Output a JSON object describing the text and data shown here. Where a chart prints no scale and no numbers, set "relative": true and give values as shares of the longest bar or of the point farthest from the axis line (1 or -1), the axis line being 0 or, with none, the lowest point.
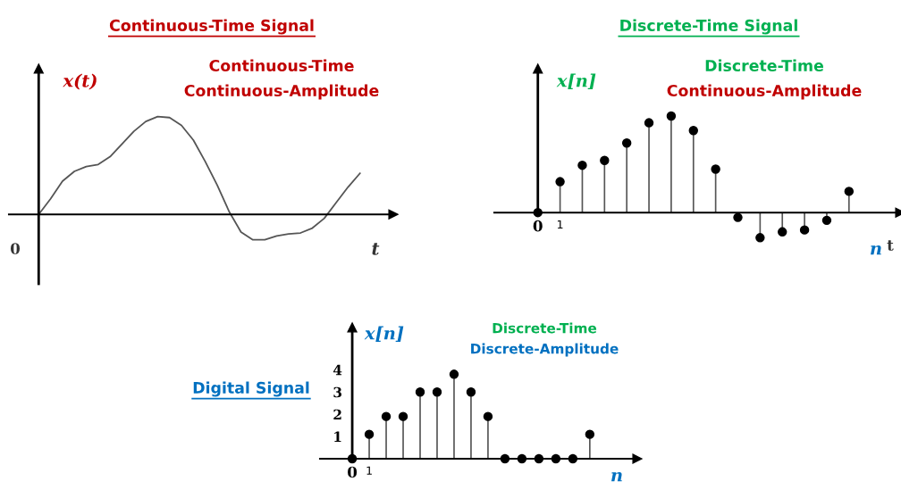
{
  "chart_data": [
    {
      "type": "line",
      "title": "Continuous-Time Signal",
      "subtitle": "Continuous-Time\nContinuous-Amplitude",
      "ylabel": "x(t)",
      "xlabel": "t",
      "relative": true,
      "annotations": [
        "0"
      ],
      "categories": [
        null,
        null,
        null,
        null,
        null,
        null,
        null,
        null,
        null,
        null,
        null,
        null,
        null,
        null,
        null,
        null,
        null,
        null,
        null,
        null,
        null,
        null,
        null,
        null,
        null,
        null,
        null,
        null
      ],
      "series": [
        {
          "color": "#555555",
          "values": [
            0,
            0.16,
            0.34,
            0.44,
            0.49,
            0.51,
            0.59,
            0.72,
            0.85,
            0.95,
            1,
            0.99,
            0.91,
            0.76,
            0.54,
            0.3,
            0.03,
            -0.18,
            -0.26,
            -0.26,
            -0.22,
            -0.2,
            -0.19,
            -0.14,
            -0.04,
            0.12,
            0.28,
            0.42
          ]
        }
      ]
    },
    {
      "type": "lollipop",
      "title": "Discrete-Time Signal",
      "subtitle": "Discrete-Time\nContinuous-Amplitude",
      "ylabel": "x[n]",
      "xlabel": "n",
      "relative": true,
      "marker": "circle",
      "annotations": [
        "t"
      ],
      "x": [
        0,
        1,
        2,
        3,
        4,
        5,
        6,
        7,
        8,
        9,
        10,
        11,
        12,
        13,
        14
      ],
      "xlim": [
        -1.96,
        16.3
      ],
      "xticks": [
        0,
        1
      ],
      "series": [
        {
          "color": "#000000",
          "values": [
            0,
            0.32,
            0.49,
            0.54,
            0.72,
            0.93,
            1,
            0.85,
            0.45,
            -0.05,
            -0.26,
            -0.2,
            -0.18,
            -0.08,
            0.22
          ]
        }
      ]
    },
    {
      "type": "lollipop",
      "title": "Digital Signal",
      "subtitle": "Discrete-Time\nDiscrete-Amplitude",
      "ylabel": "x[n]",
      "xlabel": "n",
      "marker": "circle",
      "x": [
        0,
        1,
        2,
        3,
        4,
        5,
        6,
        7,
        8,
        9,
        10,
        11,
        12,
        13,
        14
      ],
      "xlim": [
        -1.9,
        16.8
      ],
      "xticks": [
        0,
        1
      ],
      "ylim": [
        0,
        5.9
      ],
      "yticks": [
        1,
        2,
        3,
        4
      ],
      "series": [
        {
          "color": "#000000",
          "values": [
            0,
            1.1,
            1.9,
            1.9,
            3,
            3,
            3.8,
            3,
            1.9,
            0,
            0,
            0,
            0,
            0,
            1.1
          ]
        }
      ]
    }
  ]
}
